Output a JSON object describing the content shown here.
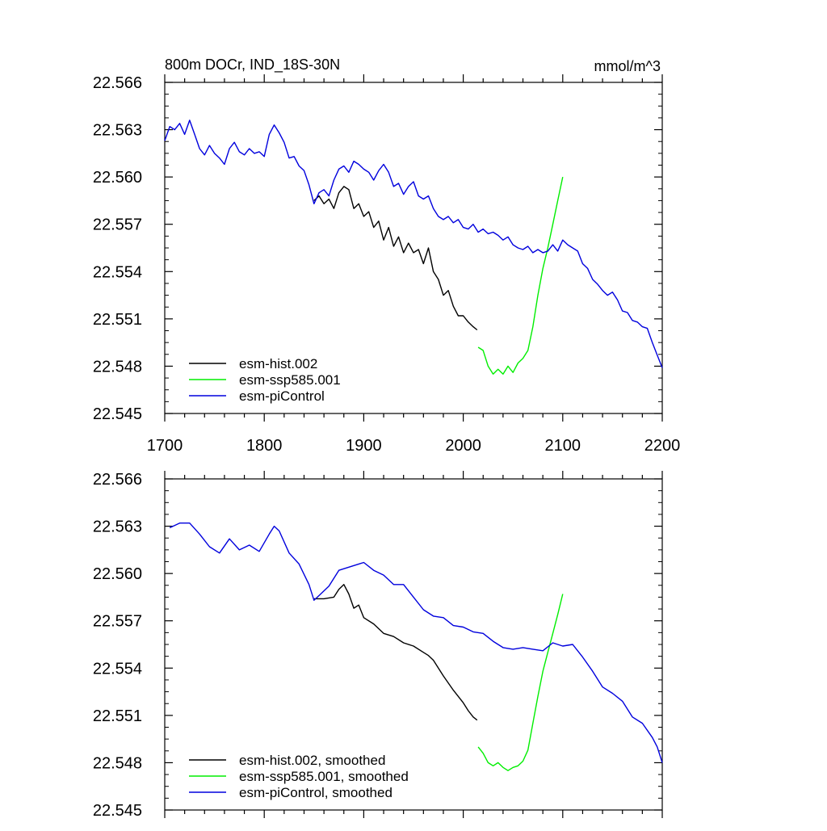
{
  "colors": {
    "hist": "#000000",
    "ssp": "#00ee00",
    "pi": "#0000dd",
    "axis": "#000000",
    "background": "#ffffff"
  },
  "chart_data": [
    {
      "type": "line",
      "title": "800m DOCr, IND_18S-30N",
      "units": "mmol/m^3",
      "xlim": [
        1700,
        2200
      ],
      "ylim": [
        22.545,
        22.566
      ],
      "x_ticks": [
        "1700",
        "1800",
        "1900",
        "2000",
        "2100",
        "2200"
      ],
      "y_ticks": [
        "22.545",
        "22.548",
        "22.551",
        "22.554",
        "22.557",
        "22.560",
        "22.563",
        "22.566"
      ],
      "legend_position": "bottom-left",
      "series": [
        {
          "name": "esm-hist.002",
          "color": "#000000",
          "x": [
            1850,
            1855,
            1860,
            1865,
            1870,
            1875,
            1880,
            1885,
            1890,
            1895,
            1900,
            1905,
            1910,
            1915,
            1920,
            1925,
            1930,
            1935,
            1940,
            1945,
            1950,
            1955,
            1960,
            1965,
            1970,
            1975,
            1980,
            1985,
            1990,
            1995,
            2000,
            2005,
            2010,
            2014
          ],
          "y": [
            22.5585,
            22.5588,
            22.5583,
            22.5586,
            22.558,
            22.559,
            22.5594,
            22.5592,
            22.558,
            22.5583,
            22.5575,
            22.5578,
            22.5568,
            22.5572,
            22.556,
            22.5568,
            22.5556,
            22.5562,
            22.5552,
            22.5558,
            22.5552,
            22.5554,
            22.5545,
            22.5555,
            22.554,
            22.5535,
            22.5525,
            22.5528,
            22.5518,
            22.5512,
            22.5512,
            22.5508,
            22.5505,
            22.5503
          ]
        },
        {
          "name": "esm-ssp585.001",
          "color": "#00ee00",
          "x": [
            2015,
            2020,
            2025,
            2030,
            2035,
            2040,
            2045,
            2050,
            2055,
            2060,
            2065,
            2070,
            2075,
            2080,
            2085,
            2090,
            2095,
            2100
          ],
          "y": [
            22.5492,
            22.549,
            22.548,
            22.5475,
            22.5478,
            22.5475,
            22.548,
            22.5476,
            22.5482,
            22.5485,
            22.549,
            22.5505,
            22.5525,
            22.5542,
            22.5555,
            22.557,
            22.5585,
            22.56
          ]
        },
        {
          "name": "esm-piControl",
          "color": "#0000dd",
          "x": [
            1700,
            1705,
            1710,
            1715,
            1720,
            1725,
            1730,
            1735,
            1740,
            1745,
            1750,
            1755,
            1760,
            1765,
            1770,
            1775,
            1780,
            1785,
            1790,
            1795,
            1800,
            1805,
            1810,
            1815,
            1820,
            1825,
            1830,
            1835,
            1840,
            1845,
            1850,
            1855,
            1860,
            1865,
            1870,
            1875,
            1880,
            1885,
            1890,
            1895,
            1900,
            1905,
            1910,
            1915,
            1920,
            1925,
            1930,
            1935,
            1940,
            1945,
            1950,
            1955,
            1960,
            1965,
            1970,
            1975,
            1980,
            1985,
            1990,
            1995,
            2000,
            2005,
            2010,
            2015,
            2020,
            2025,
            2030,
            2035,
            2040,
            2045,
            2050,
            2055,
            2060,
            2065,
            2070,
            2075,
            2080,
            2085,
            2090,
            2095,
            2100,
            2105,
            2110,
            2115,
            2120,
            2125,
            2130,
            2135,
            2140,
            2145,
            2150,
            2155,
            2160,
            2165,
            2170,
            2175,
            2180,
            2185,
            2190,
            2195,
            2200
          ],
          "y": [
            22.5623,
            22.5632,
            22.563,
            22.5634,
            22.5627,
            22.5636,
            22.5627,
            22.5618,
            22.5614,
            22.562,
            22.5615,
            22.5612,
            22.5608,
            22.5618,
            22.5622,
            22.5616,
            22.5614,
            22.5618,
            22.5615,
            22.5616,
            22.5613,
            22.5627,
            22.5633,
            22.5628,
            22.5622,
            22.5612,
            22.5613,
            22.5607,
            22.5604,
            22.5595,
            22.5583,
            22.559,
            22.5592,
            22.5588,
            22.5598,
            22.5605,
            22.5607,
            22.5603,
            22.561,
            22.5608,
            22.5605,
            22.5603,
            22.5598,
            22.5604,
            22.5608,
            22.5603,
            22.5594,
            22.5596,
            22.5589,
            22.5594,
            22.5597,
            22.5588,
            22.5586,
            22.5588,
            22.558,
            22.5575,
            22.5573,
            22.5575,
            22.5571,
            22.5573,
            22.5568,
            22.5567,
            22.557,
            22.5565,
            22.5567,
            22.5564,
            22.5565,
            22.5563,
            22.556,
            22.5562,
            22.5557,
            22.5555,
            22.5554,
            22.5556,
            22.5552,
            22.5554,
            22.5552,
            22.5553,
            22.5557,
            22.5553,
            22.556,
            22.5557,
            22.5555,
            22.5553,
            22.5545,
            22.5542,
            22.5535,
            22.5532,
            22.5528,
            22.5525,
            22.5527,
            22.5522,
            22.5515,
            22.5514,
            22.5509,
            22.5508,
            22.5505,
            22.5504,
            22.5495,
            22.5487,
            22.5479
          ]
        }
      ]
    },
    {
      "type": "line",
      "xlim": [
        1700,
        2200
      ],
      "ylim": [
        22.545,
        22.566
      ],
      "y_ticks": [
        "22.545",
        "22.548",
        "22.551",
        "22.554",
        "22.557",
        "22.560",
        "22.563",
        "22.566"
      ],
      "legend_position": "bottom-left",
      "series": [
        {
          "name": "esm-hist.002, smoothed",
          "color": "#000000",
          "x": [
            1850,
            1860,
            1870,
            1875,
            1880,
            1885,
            1890,
            1895,
            1900,
            1910,
            1920,
            1930,
            1940,
            1950,
            1960,
            1965,
            1970,
            1980,
            1990,
            2000,
            2005,
            2010,
            2014
          ],
          "y": [
            22.5584,
            22.5584,
            22.5585,
            22.559,
            22.5593,
            22.5587,
            22.5578,
            22.558,
            22.5572,
            22.5568,
            22.5562,
            22.556,
            22.5556,
            22.5554,
            22.555,
            22.5548,
            22.5545,
            22.5535,
            22.5526,
            22.5518,
            22.5513,
            22.5509,
            22.5507
          ]
        },
        {
          "name": "esm-ssp585.001, smoothed",
          "color": "#00ee00",
          "x": [
            2015,
            2020,
            2025,
            2030,
            2035,
            2040,
            2045,
            2050,
            2055,
            2060,
            2065,
            2070,
            2075,
            2080,
            2085,
            2090,
            2095,
            2100
          ],
          "y": [
            22.549,
            22.5486,
            22.548,
            22.5478,
            22.548,
            22.5477,
            22.5475,
            22.5477,
            22.5478,
            22.5481,
            22.5488,
            22.5505,
            22.5522,
            22.5538,
            22.555,
            22.5562,
            22.5574,
            22.5587
          ]
        },
        {
          "name": "esm-piControl, smoothed",
          "color": "#0000dd",
          "x": [
            1705,
            1715,
            1725,
            1735,
            1745,
            1755,
            1765,
            1775,
            1785,
            1795,
            1805,
            1810,
            1815,
            1825,
            1835,
            1845,
            1850,
            1855,
            1865,
            1875,
            1885,
            1895,
            1900,
            1910,
            1920,
            1930,
            1940,
            1950,
            1960,
            1970,
            1980,
            1990,
            2000,
            2010,
            2020,
            2030,
            2040,
            2050,
            2060,
            2070,
            2080,
            2090,
            2100,
            2110,
            2120,
            2130,
            2140,
            2150,
            2160,
            2170,
            2180,
            2190,
            2195,
            2200
          ],
          "y": [
            22.5629,
            22.5632,
            22.5632,
            22.5625,
            22.5617,
            22.5613,
            22.5622,
            22.5615,
            22.5618,
            22.5614,
            22.5625,
            22.563,
            22.5627,
            22.5613,
            22.5606,
            22.5593,
            22.5583,
            22.5586,
            22.5592,
            22.5602,
            22.5604,
            22.5606,
            22.5607,
            22.5602,
            22.5599,
            22.5593,
            22.5593,
            22.5585,
            22.5577,
            22.5573,
            22.5572,
            22.5567,
            22.5566,
            22.5563,
            22.5562,
            22.5557,
            22.5553,
            22.5552,
            22.5553,
            22.5552,
            22.5551,
            22.5556,
            22.5554,
            22.5555,
            22.5547,
            22.5538,
            22.5528,
            22.5524,
            22.5519,
            22.5509,
            22.5505,
            22.5496,
            22.549,
            22.548
          ]
        }
      ]
    }
  ]
}
